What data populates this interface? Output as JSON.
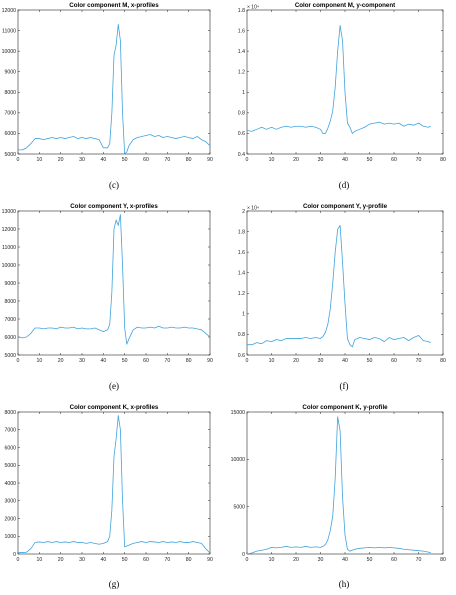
{
  "colors": {
    "line": "#3fa3dd",
    "axis": "#262626"
  },
  "chart_data": [
    {
      "type": "line",
      "title": "Color component M, x-profiles",
      "caption": "(c)",
      "xlim": [
        0,
        90
      ],
      "ylim": [
        5000,
        12000
      ],
      "xticks": [
        0,
        10,
        20,
        30,
        40,
        50,
        60,
        70,
        80,
        90
      ],
      "yticks": [
        5000,
        6000,
        7000,
        8000,
        9000,
        10000,
        11000,
        12000
      ],
      "ytick_labels": [
        "5000",
        "6000",
        "7000",
        "8000",
        "9000",
        "10000",
        "11000",
        "12000"
      ],
      "exponent_label": "",
      "x": [
        0,
        2,
        4,
        6,
        8,
        10,
        12,
        14,
        16,
        18,
        20,
        22,
        24,
        26,
        28,
        30,
        32,
        34,
        36,
        38,
        40,
        42,
        43,
        44,
        45,
        46,
        47,
        48,
        49,
        50,
        51,
        52,
        54,
        56,
        58,
        60,
        62,
        64,
        66,
        68,
        70,
        72,
        74,
        76,
        78,
        80,
        82,
        84,
        86,
        88,
        90
      ],
      "y": [
        5200,
        5200,
        5300,
        5500,
        5750,
        5750,
        5700,
        5750,
        5800,
        5750,
        5800,
        5750,
        5800,
        5850,
        5750,
        5800,
        5750,
        5800,
        5750,
        5700,
        5300,
        5300,
        5500,
        7000,
        9800,
        10300,
        11300,
        10500,
        7000,
        5000,
        5100,
        5400,
        5700,
        5800,
        5850,
        5900,
        5950,
        5850,
        5900,
        5800,
        5850,
        5800,
        5750,
        5800,
        5850,
        5800,
        5750,
        5850,
        5700,
        5600,
        5400
      ]
    },
    {
      "type": "line",
      "title": "Color component M, y-component",
      "caption": "(d)",
      "xlim": [
        0,
        80
      ],
      "ylim": [
        0.4,
        1.8
      ],
      "xticks": [
        0,
        10,
        20,
        30,
        40,
        50,
        60,
        70,
        80
      ],
      "yticks": [
        0.4,
        0.6,
        0.8,
        1.0,
        1.2,
        1.4,
        1.6,
        1.8
      ],
      "ytick_labels": [
        "0.4",
        "0.6",
        "0.8",
        "1",
        "1.2",
        "1.4",
        "1.6",
        "1.8"
      ],
      "exponent_label": "× 10⁴",
      "x": [
        0,
        2,
        4,
        6,
        8,
        10,
        12,
        14,
        16,
        18,
        20,
        22,
        24,
        26,
        28,
        30,
        31,
        32,
        33,
        34,
        35,
        36,
        37,
        38,
        39,
        40,
        41,
        42,
        43,
        44,
        46,
        48,
        50,
        52,
        54,
        56,
        58,
        60,
        62,
        64,
        66,
        68,
        70,
        72,
        74,
        75
      ],
      "y": [
        0.63,
        0.62,
        0.64,
        0.66,
        0.64,
        0.66,
        0.64,
        0.66,
        0.67,
        0.66,
        0.67,
        0.67,
        0.66,
        0.67,
        0.66,
        0.64,
        0.6,
        0.6,
        0.65,
        0.72,
        0.82,
        1.05,
        1.4,
        1.65,
        1.5,
        1.0,
        0.7,
        0.66,
        0.6,
        0.62,
        0.64,
        0.66,
        0.69,
        0.7,
        0.71,
        0.69,
        0.7,
        0.69,
        0.7,
        0.67,
        0.69,
        0.68,
        0.7,
        0.67,
        0.66,
        0.67
      ]
    },
    {
      "type": "line",
      "title": "Color component Y, x-profiles",
      "caption": "(e)",
      "xlim": [
        0,
        90
      ],
      "ylim": [
        5000,
        13000
      ],
      "xticks": [
        0,
        10,
        20,
        30,
        40,
        50,
        60,
        70,
        80,
        90
      ],
      "yticks": [
        5000,
        6000,
        7000,
        8000,
        9000,
        10000,
        11000,
        12000,
        13000
      ],
      "ytick_labels": [
        "5000",
        "6000",
        "7000",
        "8000",
        "9000",
        "10000",
        "11000",
        "12000",
        "13000"
      ],
      "exponent_label": "",
      "x": [
        0,
        2,
        4,
        6,
        8,
        10,
        12,
        14,
        16,
        18,
        20,
        22,
        24,
        26,
        28,
        30,
        32,
        34,
        36,
        38,
        40,
        42,
        43,
        44,
        45,
        46,
        47,
        48,
        49,
        50,
        51,
        52,
        54,
        56,
        58,
        60,
        62,
        64,
        66,
        68,
        70,
        72,
        74,
        76,
        78,
        80,
        82,
        84,
        86,
        88,
        90
      ],
      "y": [
        6000,
        5950,
        6000,
        6200,
        6500,
        6500,
        6450,
        6500,
        6500,
        6450,
        6550,
        6500,
        6500,
        6550,
        6450,
        6500,
        6450,
        6450,
        6500,
        6400,
        6300,
        6400,
        6700,
        8500,
        12000,
        12500,
        12200,
        12800,
        10000,
        6500,
        5600,
        5900,
        6400,
        6550,
        6500,
        6500,
        6550,
        6500,
        6600,
        6500,
        6500,
        6550,
        6500,
        6500,
        6550,
        6500,
        6500,
        6450,
        6400,
        6200,
        6000
      ]
    },
    {
      "type": "line",
      "title": "Color component Y, y-profile",
      "caption": "(f)",
      "xlim": [
        0,
        80
      ],
      "ylim": [
        0.6,
        2.0
      ],
      "xticks": [
        0,
        10,
        20,
        30,
        40,
        50,
        60,
        70,
        80
      ],
      "yticks": [
        0.6,
        0.8,
        1.0,
        1.2,
        1.4,
        1.6,
        1.8,
        2.0
      ],
      "ytick_labels": [
        "0.6",
        "0.8",
        "1",
        "1.2",
        "1.4",
        "1.6",
        "1.8",
        "2"
      ],
      "exponent_label": "× 10⁴",
      "x": [
        0,
        2,
        4,
        6,
        8,
        10,
        12,
        14,
        16,
        18,
        20,
        22,
        24,
        26,
        28,
        30,
        31,
        32,
        33,
        34,
        35,
        36,
        37,
        38,
        39,
        40,
        41,
        42,
        43,
        44,
        46,
        48,
        50,
        52,
        54,
        56,
        58,
        60,
        62,
        64,
        66,
        68,
        70,
        72,
        74,
        75
      ],
      "y": [
        0.7,
        0.7,
        0.72,
        0.71,
        0.74,
        0.73,
        0.75,
        0.74,
        0.76,
        0.76,
        0.76,
        0.76,
        0.77,
        0.76,
        0.77,
        0.76,
        0.78,
        0.82,
        0.9,
        1.05,
        1.3,
        1.6,
        1.82,
        1.86,
        1.5,
        1.1,
        0.76,
        0.7,
        0.68,
        0.75,
        0.77,
        0.76,
        0.75,
        0.77,
        0.76,
        0.73,
        0.77,
        0.75,
        0.76,
        0.77,
        0.74,
        0.77,
        0.79,
        0.74,
        0.73,
        0.72
      ]
    },
    {
      "type": "line",
      "title": "Color component K, x-profiles",
      "caption": "(g)",
      "xlim": [
        0,
        90
      ],
      "ylim": [
        0,
        8000
      ],
      "xticks": [
        0,
        10,
        20,
        30,
        40,
        50,
        60,
        70,
        80,
        90
      ],
      "yticks": [
        0,
        1000,
        2000,
        3000,
        4000,
        5000,
        6000,
        7000,
        8000
      ],
      "ytick_labels": [
        "0",
        "1000",
        "2000",
        "3000",
        "4000",
        "5000",
        "6000",
        "7000",
        "8000"
      ],
      "exponent_label": "",
      "x": [
        0,
        2,
        4,
        6,
        8,
        10,
        12,
        14,
        16,
        18,
        20,
        22,
        24,
        26,
        28,
        30,
        32,
        34,
        36,
        38,
        40,
        42,
        43,
        44,
        45,
        46,
        47,
        48,
        49,
        50,
        52,
        54,
        56,
        58,
        60,
        62,
        64,
        66,
        68,
        70,
        72,
        74,
        76,
        78,
        80,
        82,
        84,
        86,
        88,
        90
      ],
      "y": [
        100,
        80,
        100,
        300,
        650,
        680,
        650,
        700,
        650,
        700,
        650,
        680,
        650,
        700,
        650,
        650,
        600,
        650,
        600,
        550,
        600,
        700,
        1000,
        2500,
        5500,
        6500,
        7800,
        7000,
        3000,
        400,
        500,
        600,
        650,
        700,
        650,
        700,
        680,
        650,
        700,
        650,
        680,
        650,
        700,
        650,
        650,
        700,
        650,
        600,
        300,
        50
      ]
    },
    {
      "type": "line",
      "title": "Color component K, y-profile",
      "caption": "(h)",
      "xlim": [
        0,
        80
      ],
      "ylim": [
        0,
        15000
      ],
      "xticks": [
        0,
        10,
        20,
        30,
        40,
        50,
        60,
        70,
        80
      ],
      "yticks": [
        0,
        5000,
        10000,
        15000
      ],
      "ytick_labels": [
        "0",
        "5000",
        "10000",
        "15000"
      ],
      "exponent_label": "",
      "x": [
        0,
        2,
        4,
        6,
        8,
        10,
        12,
        14,
        16,
        18,
        20,
        22,
        24,
        26,
        28,
        30,
        31,
        32,
        33,
        34,
        35,
        36,
        37,
        38,
        39,
        40,
        41,
        42,
        44,
        46,
        48,
        50,
        52,
        54,
        56,
        58,
        60,
        62,
        64,
        66,
        68,
        70,
        72,
        74,
        75
      ],
      "y": [
        0,
        100,
        300,
        400,
        500,
        700,
        650,
        700,
        800,
        700,
        750,
        700,
        800,
        700,
        750,
        700,
        800,
        1000,
        1500,
        2500,
        4000,
        8000,
        14500,
        13000,
        6000,
        2000,
        500,
        300,
        500,
        600,
        650,
        700,
        650,
        700,
        650,
        700,
        650,
        600,
        500,
        450,
        400,
        350,
        300,
        200,
        150
      ]
    }
  ]
}
